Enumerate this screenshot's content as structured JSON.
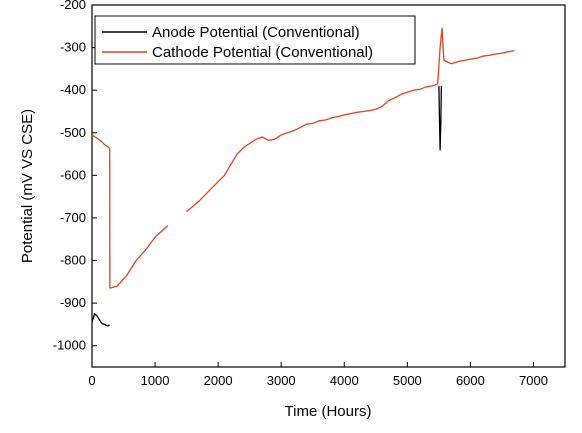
{
  "chart_data": {
    "type": "line",
    "title": "",
    "xlabel": "Time (Hours)",
    "ylabel": "Potential (mV VS CSE)",
    "xlim": [
      0,
      7500
    ],
    "ylim": [
      -1050,
      -200
    ],
    "xticks": [
      0,
      1000,
      2000,
      3000,
      4000,
      5000,
      6000,
      7000
    ],
    "yticks": [
      -200,
      -300,
      -400,
      -500,
      -600,
      -700,
      -800,
      -900,
      -1000
    ],
    "grid": false,
    "legend_position": "top-left",
    "series": [
      {
        "name": "Anode Potential (Conventional)",
        "color": "#000000",
        "segments": [
          [
            [
              0,
              -945
            ],
            [
              40,
              -925
            ],
            [
              80,
              -930
            ],
            [
              120,
              -940
            ],
            [
              160,
              -948
            ],
            [
              200,
              -950
            ],
            [
              240,
              -953
            ],
            [
              280,
              -952
            ]
          ],
          [
            [
              5500,
              -390
            ],
            [
              5510,
              -470
            ],
            [
              5520,
              -540
            ],
            [
              5530,
              -480
            ],
            [
              5540,
              -390
            ]
          ]
        ]
      },
      {
        "name": "Cathode Potential (Conventional)",
        "color": "#e8401c",
        "segments": [
          [
            [
              0,
              -505
            ],
            [
              50,
              -510
            ],
            [
              100,
              -515
            ],
            [
              150,
              -520
            ],
            [
              200,
              -528
            ],
            [
              250,
              -533
            ],
            [
              280,
              -537
            ]
          ],
          [
            [
              280,
              -537
            ],
            [
              282,
              -865
            ]
          ],
          [
            [
              282,
              -865
            ],
            [
              400,
              -860
            ],
            [
              550,
              -835
            ],
            [
              700,
              -800
            ],
            [
              850,
              -775
            ],
            [
              1000,
              -745
            ],
            [
              1200,
              -718
            ]
          ],
          [
            [
              1500,
              -685
            ],
            [
              1700,
              -660
            ],
            [
              1900,
              -630
            ],
            [
              2100,
              -600
            ],
            [
              2200,
              -575
            ],
            [
              2300,
              -550
            ],
            [
              2400,
              -535
            ],
            [
              2500,
              -525
            ],
            [
              2600,
              -515
            ],
            [
              2700,
              -510
            ],
            [
              2800,
              -518
            ],
            [
              2900,
              -515
            ],
            [
              3000,
              -505
            ],
            [
              3100,
              -500
            ],
            [
              3200,
              -495
            ],
            [
              3300,
              -488
            ],
            [
              3400,
              -480
            ],
            [
              3500,
              -478
            ],
            [
              3600,
              -472
            ],
            [
              3700,
              -470
            ],
            [
              3800,
              -465
            ],
            [
              3900,
              -462
            ],
            [
              4000,
              -458
            ],
            [
              4100,
              -455
            ],
            [
              4200,
              -452
            ],
            [
              4300,
              -450
            ],
            [
              4400,
              -448
            ],
            [
              4500,
              -445
            ],
            [
              4600,
              -438
            ],
            [
              4700,
              -425
            ],
            [
              4800,
              -418
            ],
            [
              4900,
              -410
            ],
            [
              5000,
              -405
            ],
            [
              5100,
              -400
            ],
            [
              5200,
              -398
            ],
            [
              5300,
              -392
            ],
            [
              5400,
              -390
            ],
            [
              5480,
              -385
            ]
          ],
          [
            [
              5480,
              -385
            ],
            [
              5520,
              -300
            ],
            [
              5550,
              -255
            ],
            [
              5580,
              -330
            ]
          ],
          [
            [
              5580,
              -330
            ],
            [
              5700,
              -338
            ],
            [
              5800,
              -333
            ],
            [
              5900,
              -330
            ],
            [
              6000,
              -327
            ],
            [
              6100,
              -325
            ],
            [
              6200,
              -320
            ],
            [
              6300,
              -318
            ],
            [
              6400,
              -315
            ],
            [
              6500,
              -313
            ],
            [
              6600,
              -310
            ],
            [
              6700,
              -307
            ]
          ]
        ]
      }
    ]
  }
}
